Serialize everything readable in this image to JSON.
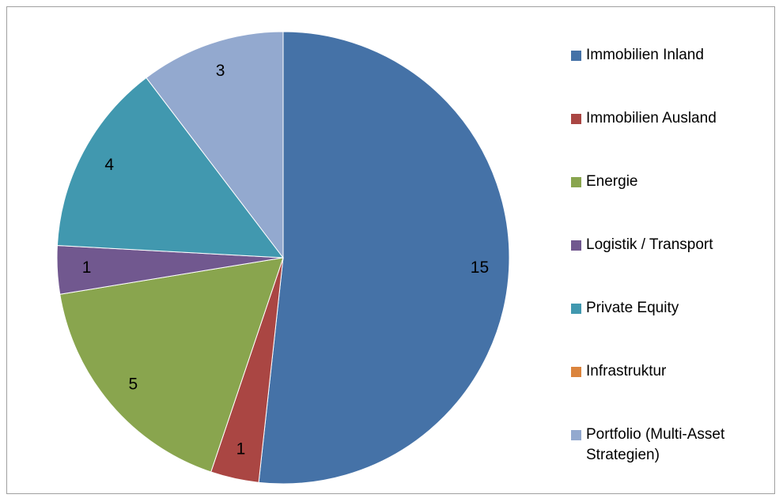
{
  "chart_data": {
    "type": "pie",
    "categories": [
      "Immobilien Inland",
      "Immobilien Ausland",
      "Energie",
      "Logistik / Transport",
      "Private Equity",
      "Infrastruktur",
      "Portfolio (Multi-Asset Strategien)"
    ],
    "values": [
      15,
      1,
      5,
      1,
      4,
      0,
      3
    ],
    "colors": [
      "#4572a7",
      "#aa4643",
      "#89a54e",
      "#71588f",
      "#4198af",
      "#db843d",
      "#93a9cf"
    ],
    "legend": "right"
  }
}
